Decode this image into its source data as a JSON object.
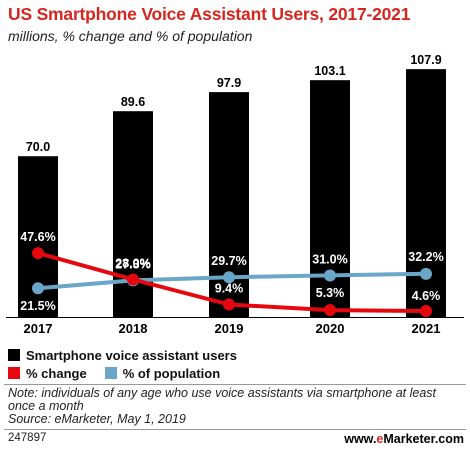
{
  "title": "US Smartphone Voice Assistant Users, 2017-2021",
  "subtitle": "millions, % change and % of population",
  "chart_data": {
    "type": "bar",
    "categories": [
      "2017",
      "2018",
      "2019",
      "2020",
      "2021"
    ],
    "series": [
      {
        "name": "Smartphone voice assistant users",
        "type": "bar",
        "values": [
          70.0,
          89.6,
          97.9,
          103.1,
          107.9
        ],
        "labels": [
          "70.0",
          "89.6",
          "97.9",
          "103.1",
          "107.9"
        ],
        "color": "#000000"
      },
      {
        "name": "% change",
        "type": "line",
        "values": [
          47.6,
          28.0,
          9.4,
          5.3,
          4.6
        ],
        "labels": [
          "47.6%",
          "28.0%",
          "9.4%",
          "5.3%",
          "4.6%"
        ],
        "color": "#e5080f"
      },
      {
        "name": "% of population",
        "type": "line",
        "values": [
          21.5,
          27.3,
          29.7,
          31.0,
          32.2
        ],
        "labels": [
          "21.5%",
          "27.3%",
          "29.7%",
          "31.0%",
          "32.2%"
        ],
        "color": "#6aa6c8"
      }
    ],
    "ylim": [
      0,
      120
    ],
    "grid": false,
    "legend": "bottom"
  },
  "note": "Note: individuals of any age who use voice assistants via smartphone at least once a month",
  "source": "Source: eMarketer, May 1, 2019",
  "chart_id": "247897",
  "brand": {
    "prefix": "www.",
    "e": "e",
    "rest": "Marketer",
    "suffix": ".com"
  },
  "colors": {
    "title": "#d7261e",
    "bar": "#000000",
    "change": "#e5080f",
    "population": "#6aa6c8"
  }
}
